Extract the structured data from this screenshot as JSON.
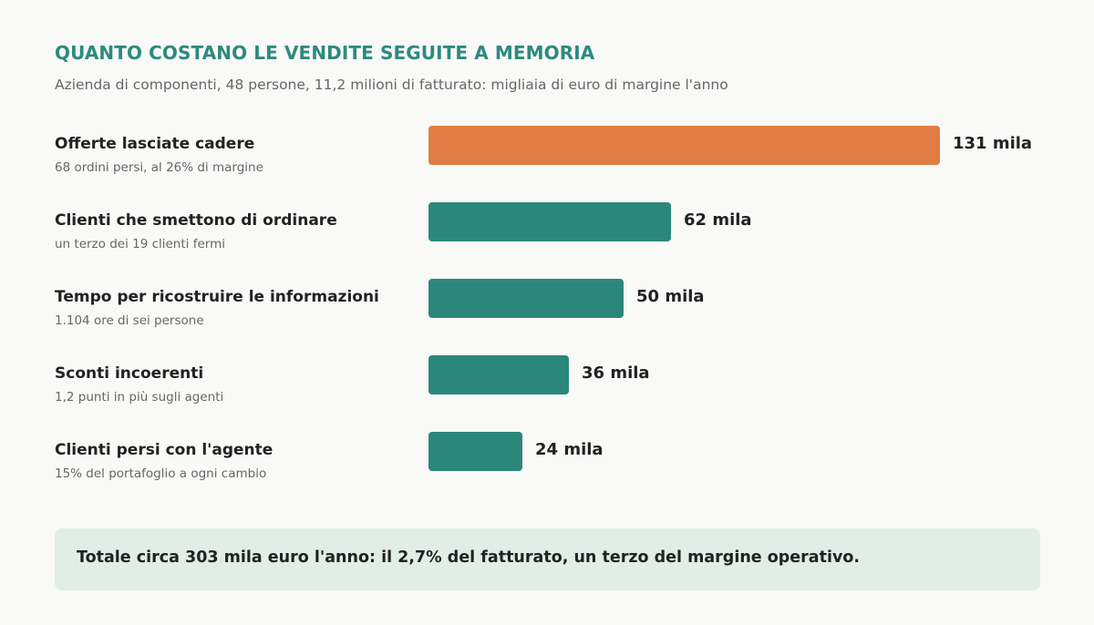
{
  "title": "QUANTO COSTANO LE VENDITE SEGUITE A MEMORIA",
  "subtitle": "Azienda di componenti, 48 persone, 11,2 milioni di fatturato: migliaia di euro di margine l'anno",
  "chart_data": {
    "type": "bar",
    "orientation": "horizontal",
    "title": "QUANTO COSTANO LE VENDITE SEGUITE A MEMORIA",
    "subtitle": "Azienda di componenti, 48 persone, 11,2 milioni di fatturato: migliaia di euro di margine l'anno",
    "unit_suffix": "mila",
    "xlim": [
      0,
      131
    ],
    "grid": false,
    "legend": "none",
    "categories": [
      "Offerte lasciate cadere",
      "Clienti che smettono di ordinare",
      "Tempo per ricostruire le informazioni",
      "Sconti incoerenti",
      "Clienti persi con l'agente"
    ],
    "details": [
      "68 ordini persi, al 26% di margine",
      "un terzo dei 19 clienti fermi",
      "1.104 ore di sei persone",
      "1,2 punti in più sugli agenti",
      "15% del portafoglio a ogni cambio"
    ],
    "values": [
      131,
      62,
      50,
      36,
      24
    ],
    "value_labels": [
      "131 mila",
      "62 mila",
      "50 mila",
      "36 mila",
      "24 mila"
    ],
    "highlight_index": 0,
    "colors": {
      "highlight": "#e17d42",
      "default": "#2c877b",
      "title": "#2c8a7e"
    }
  },
  "summary": {
    "text": "Totale circa 303 mila euro l'anno: il 2,7% del fatturato, un terzo del margine operativo."
  }
}
